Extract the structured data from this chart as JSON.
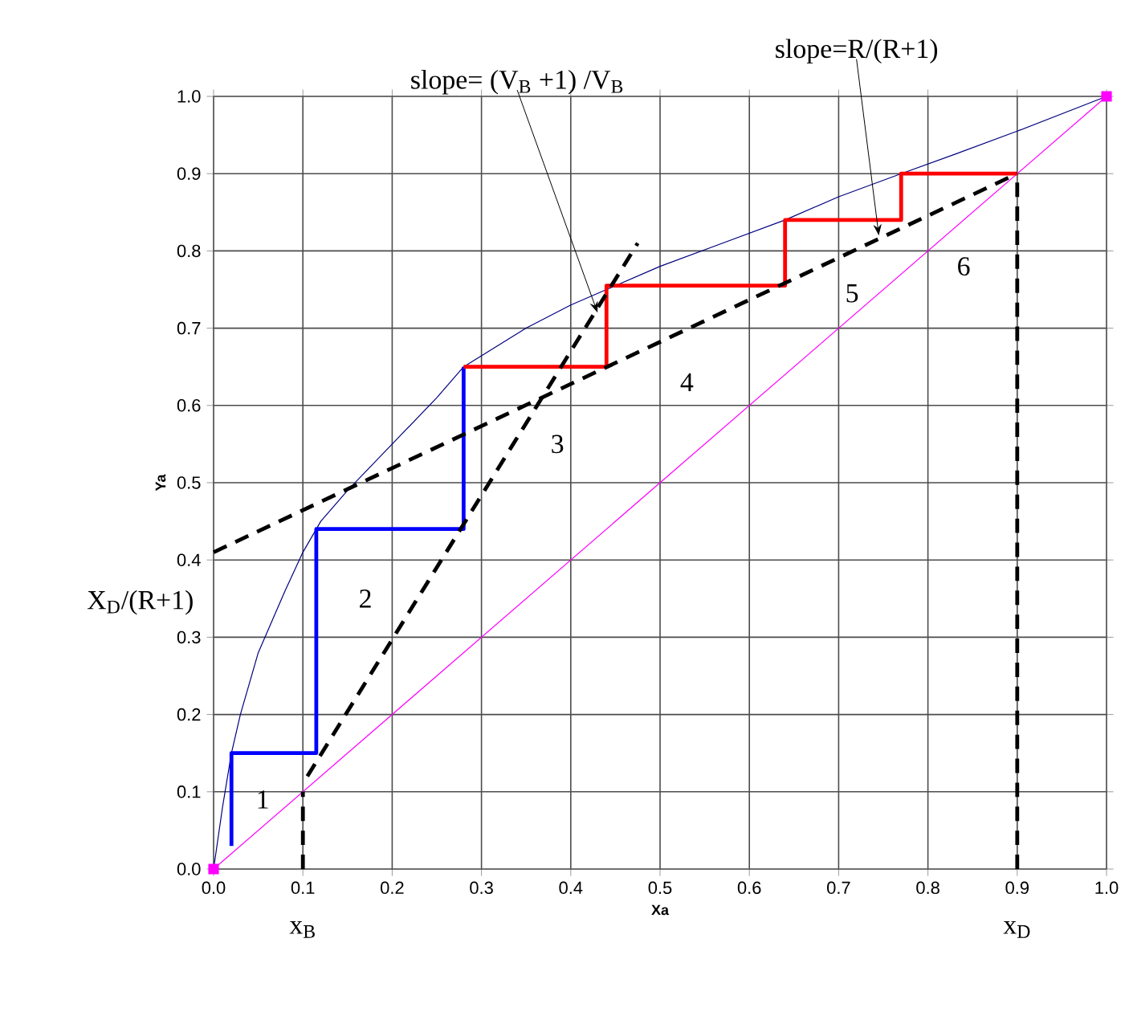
{
  "chart_data": {
    "type": "line",
    "xlabel": "Xa",
    "ylabel": "Ya",
    "xlim": [
      0,
      1
    ],
    "ylim": [
      0,
      1
    ],
    "xticks": [
      {
        "value": 0,
        "label": "0.0"
      },
      {
        "value": 0.1,
        "label": "0.1"
      },
      {
        "value": 0.2,
        "label": "0.2"
      },
      {
        "value": 0.3,
        "label": "0.3"
      },
      {
        "value": 0.4,
        "label": "0.4"
      },
      {
        "value": 0.5,
        "label": "0.5"
      },
      {
        "value": 0.6,
        "label": "0.6"
      },
      {
        "value": 0.7,
        "label": "0.7"
      },
      {
        "value": 0.8,
        "label": "0.8"
      },
      {
        "value": 0.9,
        "label": "0.9"
      },
      {
        "value": 1,
        "label": "1.0"
      }
    ],
    "yticks": [
      {
        "value": 0,
        "label": "0.0"
      },
      {
        "value": 0.1,
        "label": "0.1"
      },
      {
        "value": 0.2,
        "label": "0.2"
      },
      {
        "value": 0.3,
        "label": "0.3"
      },
      {
        "value": 0.4,
        "label": "0.4"
      },
      {
        "value": 0.5,
        "label": "0.5"
      },
      {
        "value": 0.6,
        "label": "0.6"
      },
      {
        "value": 0.7,
        "label": "0.7"
      },
      {
        "value": 0.8,
        "label": "0.8"
      },
      {
        "value": 0.9,
        "label": "0.9"
      },
      {
        "value": 1,
        "label": "1.0"
      }
    ],
    "grid": true,
    "series": [
      {
        "color": "#000080",
        "line_style": "solid",
        "x": [
          0,
          0.01,
          0.02,
          0.03,
          0.05,
          0.08,
          0.1,
          0.12,
          0.15,
          0.2,
          0.25,
          0.28,
          0.35,
          0.4,
          0.44,
          0.5,
          0.57,
          0.64,
          0.7,
          0.77,
          0.83,
          0.9,
          1
        ],
        "values": [
          0,
          0.08,
          0.15,
          0.2,
          0.28,
          0.36,
          0.41,
          0.45,
          0.49,
          0.55,
          0.61,
          0.65,
          0.7,
          0.73,
          0.75,
          0.78,
          0.81,
          0.84,
          0.87,
          0.9,
          0.925,
          0.955,
          1
        ]
      },
      {
        "color": "#ff00ff",
        "line_style": "solid",
        "marker": "square",
        "x": [
          0,
          1
        ],
        "values": [
          0,
          1
        ]
      },
      {
        "color": "#0000ff",
        "line_style": "solid",
        "x": [
          0.02,
          0.02,
          0.115,
          0.115,
          0.28,
          0.28
        ],
        "values": [
          0.03,
          0.15,
          0.15,
          0.44,
          0.44,
          0.65
        ]
      },
      {
        "color": "#ff0000",
        "line_style": "solid",
        "x": [
          0.28,
          0.44,
          0.44,
          0.64,
          0.64,
          0.77,
          0.77,
          0.9
        ],
        "values": [
          0.65,
          0.65,
          0.755,
          0.755,
          0.84,
          0.84,
          0.9,
          0.9
        ]
      },
      {
        "color": "#000000",
        "line_style": "dashed",
        "x": [
          0,
          0.9
        ],
        "values": [
          0.41,
          0.9
        ]
      },
      {
        "color": "#000000",
        "line_style": "dashed",
        "x": [
          0.105,
          0.475
        ],
        "values": [
          0.12,
          0.81
        ]
      },
      {
        "color": "#000000",
        "line_style": "dashed",
        "x": [
          0.1,
          0.1
        ],
        "values": [
          0,
          0.1
        ]
      },
      {
        "color": "#000000",
        "line_style": "dashed",
        "x": [
          0.9,
          0.9
        ],
        "values": [
          0,
          0.9
        ]
      }
    ],
    "annotations": [
      {
        "text": "slope= (V$_{B}$ +1) /V$_{B}$",
        "x": 0.43,
        "y": 0.72
      },
      {
        "text": "slope=R/(R+1)",
        "x": 0.745,
        "y": 0.82
      },
      {
        "text": "X$_{D}$/(R+1)",
        "x": 0,
        "y": 0.41
      },
      {
        "text": "x$_{B}$",
        "x": 0.1,
        "y": 0
      },
      {
        "text": "x$_{D}$",
        "x": 0.9,
        "y": 0
      },
      "1",
      "2",
      "3",
      "4",
      "5",
      "6"
    ]
  }
}
